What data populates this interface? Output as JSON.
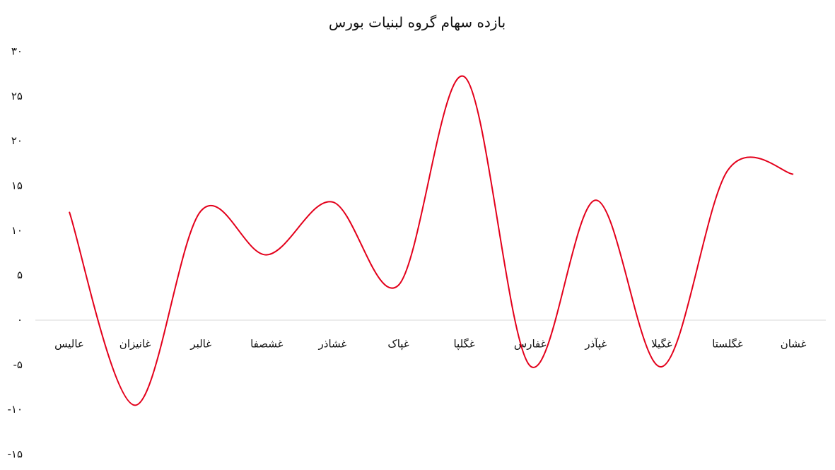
{
  "chart_data": {
    "type": "line",
    "title": "بازده سهام گروه لبنیات بورس",
    "categories": [
      "عالیس",
      "غانیزان",
      "غالبر",
      "غشصفا",
      "غشاذر",
      "غپاک",
      "غگلپا",
      "غفارس",
      "غپآذر",
      "غگیلا",
      "غگلستا",
      "غشان"
    ],
    "values": [
      12.1,
      -9.5,
      12.2,
      7.3,
      13.2,
      3.9,
      27.2,
      -5.1,
      13.4,
      -5.2,
      16.7,
      16.3
    ],
    "color": "#e3001b",
    "ylim": [
      -15,
      30
    ],
    "yticks": [
      {
        "value": 30,
        "label": "۳۰"
      },
      {
        "value": 25,
        "label": "۲۵"
      },
      {
        "value": 20,
        "label": "۲۰"
      },
      {
        "value": 15,
        "label": "۱۵"
      },
      {
        "value": 10,
        "label": "۱۰"
      },
      {
        "value": 5,
        "label": "۵"
      },
      {
        "value": 0,
        "label": "۰"
      },
      {
        "value": -5,
        "label": "-۵"
      },
      {
        "value": -10,
        "label": "-۱۰"
      },
      {
        "value": -15,
        "label": "-۱۵"
      }
    ],
    "smooth": true
  }
}
